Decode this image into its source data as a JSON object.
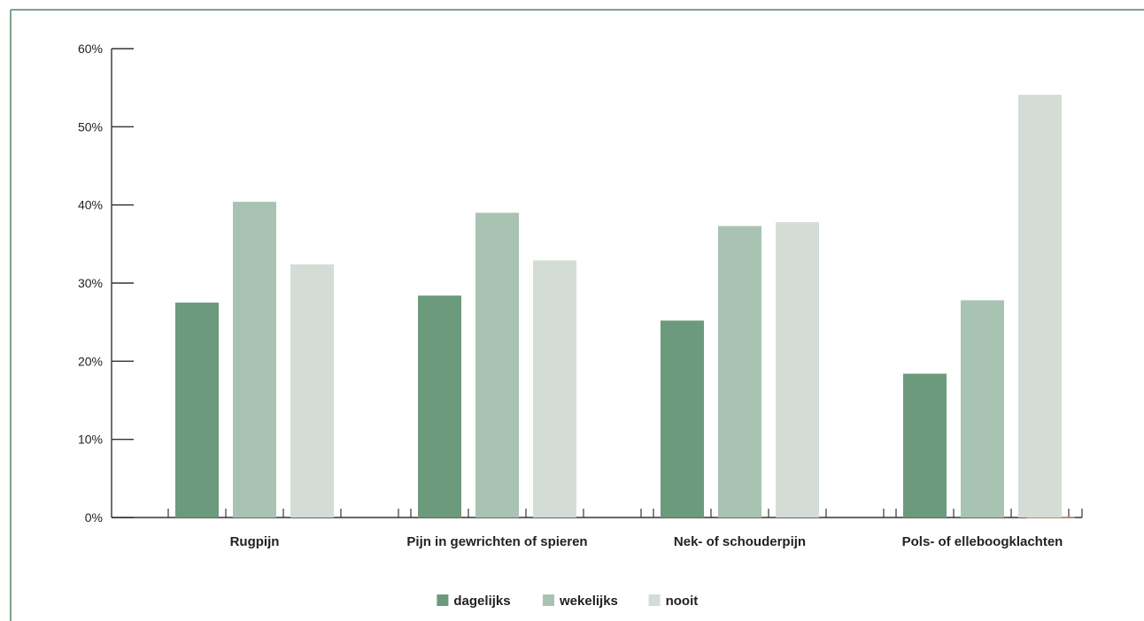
{
  "chart_data": {
    "type": "bar",
    "categories": [
      "Rugpijn",
      "Pijn in gewrichten of spieren",
      "Nek- of schouderpijn",
      "Pols- of elleboogklachten"
    ],
    "series": [
      {
        "name": "dagelijks",
        "values": [
          27.5,
          28.4,
          25.2,
          18.4
        ],
        "color": "#6b9a7c"
      },
      {
        "name": "wekelijks",
        "values": [
          40.4,
          39.0,
          37.3,
          27.8
        ],
        "color": "#a9c3b3"
      },
      {
        "name": "nooit",
        "values": [
          32.4,
          32.9,
          37.8,
          54.1
        ],
        "color": "#d3ddd5"
      }
    ],
    "ylim": [
      0,
      60
    ],
    "yticks": [
      "0%",
      "10%",
      "20%",
      "30%",
      "40%",
      "50%",
      "60%"
    ],
    "ytick_values": [
      0,
      10,
      20,
      30,
      40,
      50,
      60
    ],
    "grid": false,
    "legend_position": "bottom-center",
    "colors": {
      "frame": "#7ea48b",
      "axis": "#333333",
      "text": "#222222",
      "accent": "#c98a5a"
    }
  }
}
